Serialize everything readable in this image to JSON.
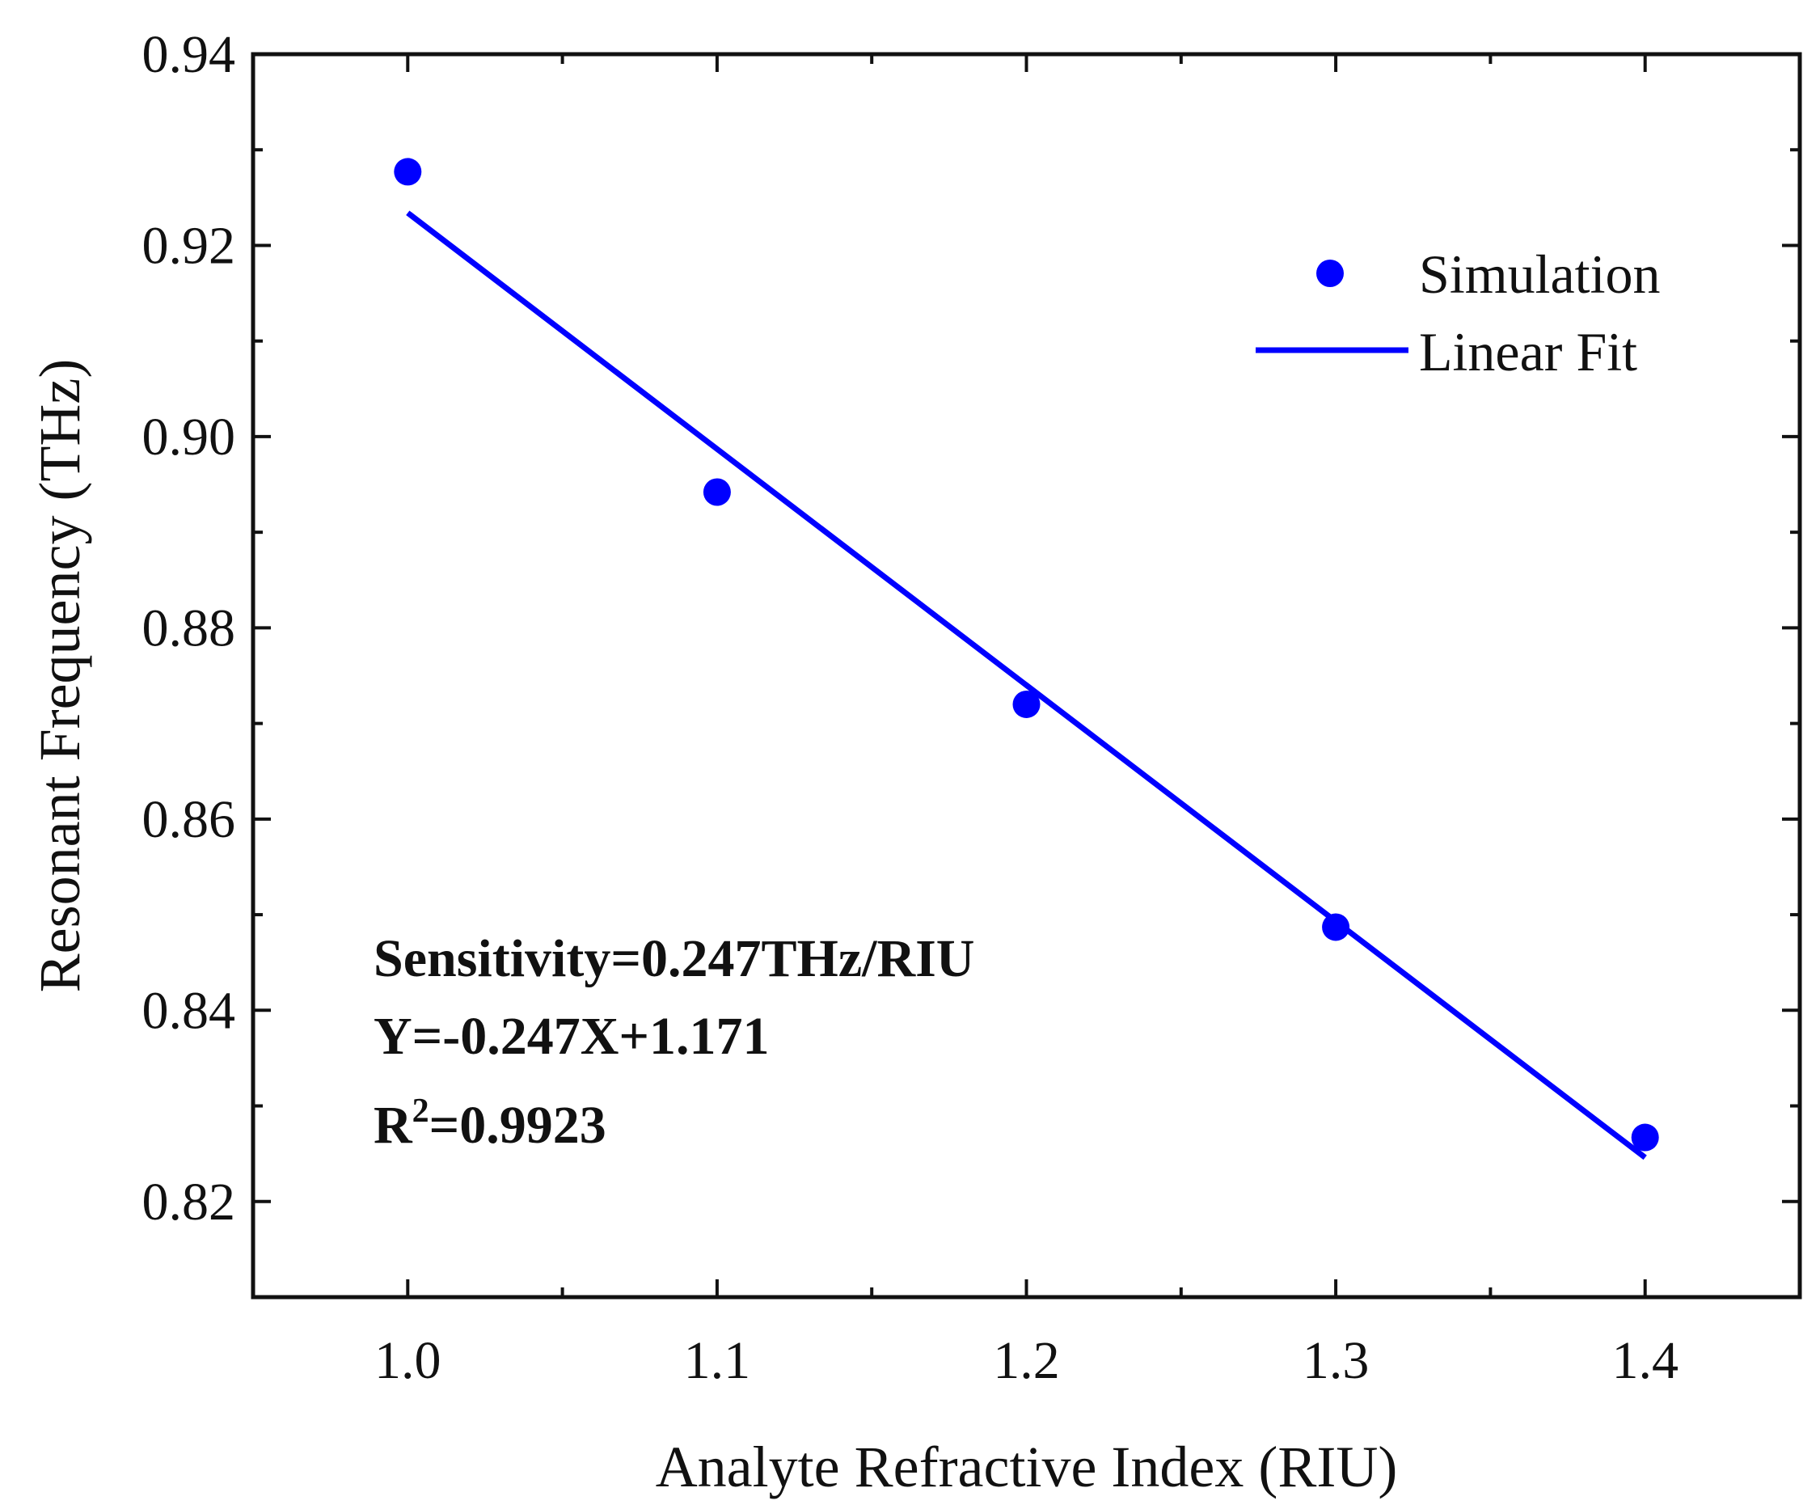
{
  "chart_data": {
    "type": "scatter",
    "title": "",
    "xlabel": "Analyte Refractive Index (RIU)",
    "ylabel": "Resonant Frequency (THz)",
    "xlim": [
      0.95,
      1.45
    ],
    "ylim": [
      0.81,
      0.94
    ],
    "x_ticks": [
      1.0,
      1.1,
      1.2,
      1.3,
      1.4
    ],
    "x_tick_labels": [
      "1.0",
      "1.1",
      "1.2",
      "1.3",
      "1.4"
    ],
    "y_ticks": [
      0.82,
      0.84,
      0.86,
      0.88,
      0.9,
      0.92,
      0.94
    ],
    "y_tick_labels": [
      "0.82",
      "0.84",
      "0.86",
      "0.88",
      "0.90",
      "0.92",
      "0.94"
    ],
    "grid": false,
    "legend_position": "top-right",
    "series": [
      {
        "name": "Simulation",
        "kind": "scatter",
        "color": "#0000ff",
        "x": [
          1.0,
          1.1,
          1.2,
          1.3,
          1.4
        ],
        "y": [
          0.9277,
          0.8942,
          0.872,
          0.8487,
          0.8267
        ]
      },
      {
        "name": "Linear Fit",
        "kind": "line",
        "color": "#0000ff",
        "x": [
          1.0,
          1.4
        ],
        "y": [
          0.9234,
          0.8246
        ]
      }
    ],
    "annotations": {
      "sensitivity": "Sensitivity=0.247THz/RIU",
      "equation": "Y=-0.247X+1.171",
      "r2_prefix": "R",
      "r2_superscript": "2",
      "r2_value": "=0.9923"
    }
  }
}
